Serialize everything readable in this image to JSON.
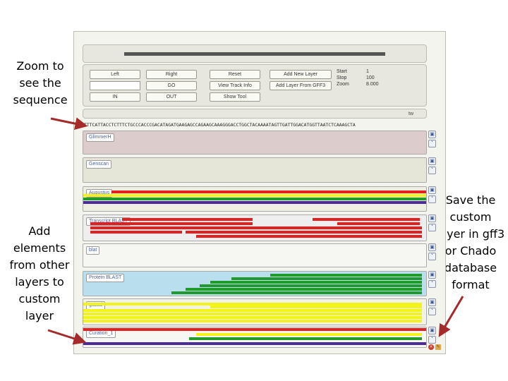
{
  "annotations": {
    "zoom": "Zoom to see the sequence",
    "add": "Add elements from other layers to custom layer",
    "save": "Save the custom layer in gff3 or Chado database format"
  },
  "toolbar": {
    "left": "Left",
    "right": "Right",
    "reset": "Reset",
    "add_new_layer": "Add New Layer",
    "go": "GO",
    "view_track_info": "View Track Info",
    "add_layer_from_gff3": "Add Layer From GFF3",
    "in": "IN",
    "out": "OUT",
    "show_tool": "Show Tool",
    "start_label": "Start",
    "start_value": "1",
    "stop_label": "Stop",
    "stop_value": "100",
    "zoom_label": "Zoom",
    "zoom_value": "8.000"
  },
  "sequence": {
    "badge": "tw",
    "text": "TTTCATTACCTCTTTCTGCCCACCCGACATAGATGAAGAGCCAGAAGCAAAGGGACCTGGCTACAAAATAGTTGATTGGACATGGTTAATCTCAAAGCTA"
  },
  "tracks": [
    {
      "label": "GlimmerH"
    },
    {
      "label": "Genscan"
    },
    {
      "label": "Augustus"
    },
    {
      "label": "Transcript BLAST"
    },
    {
      "label": "blat"
    },
    {
      "label": "Protein BLAST"
    },
    {
      "label": "gcbad"
    },
    {
      "label": "Curation_1"
    }
  ],
  "colors": {
    "red": "#e41f1f",
    "green": "#1f9a2b",
    "purple": "#4b2a9a",
    "yellow": "#f3f31c",
    "arrow": "#a52a2a",
    "glimmer_bg": "#dccccc",
    "genscan_bg": "#e6e6d8",
    "protein_bg": "#b9dfee",
    "gcbad_bg": "#f2f2e6"
  },
  "icons": {
    "save": "floppy-disk-icon",
    "edit": "pencil-icon",
    "delete": "delete-x-icon"
  }
}
